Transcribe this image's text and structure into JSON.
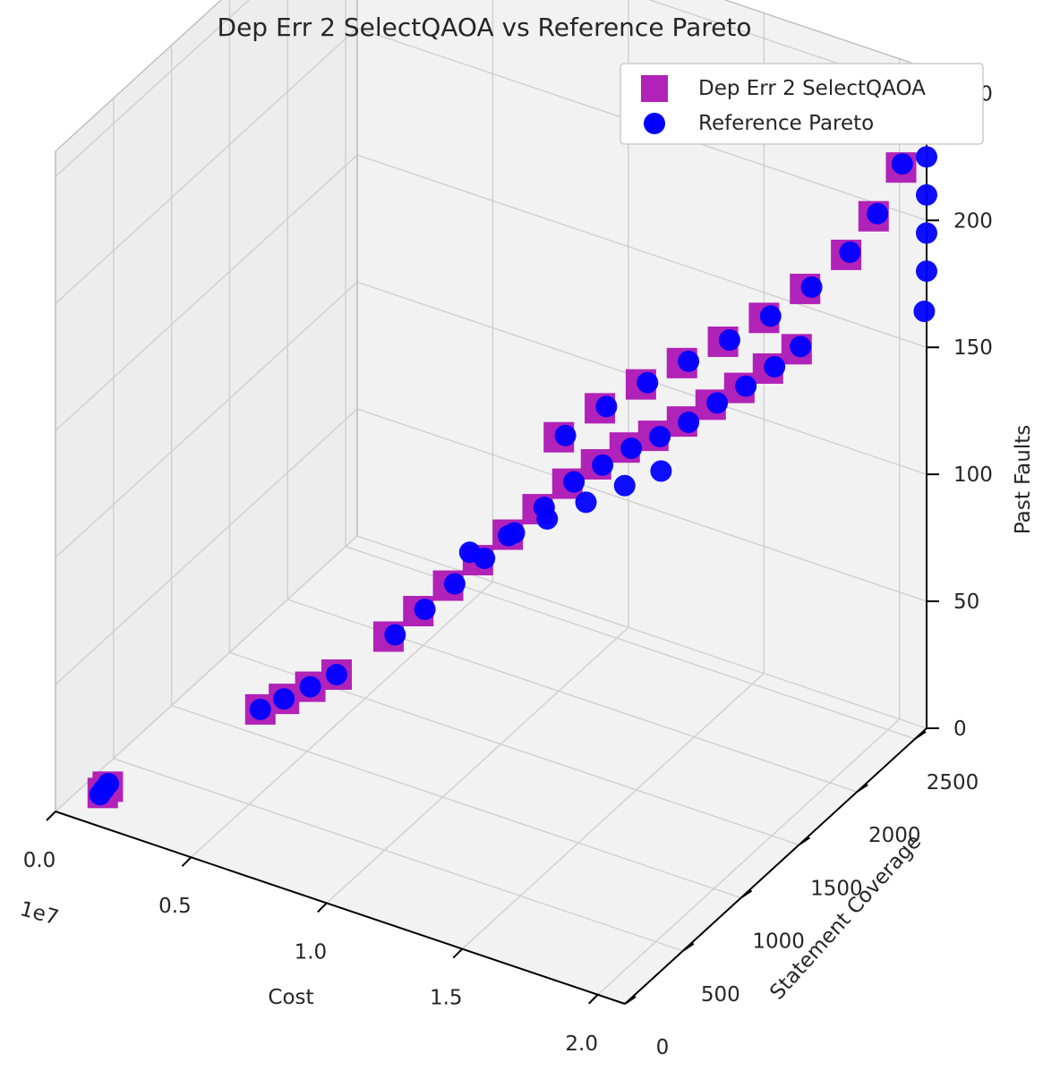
{
  "chart_data": {
    "type": "scatter",
    "title": "Dep Err 2 SelectQAOA vs Reference Pareto",
    "xlabel": "Cost",
    "ylabel": "Statement Coverage",
    "zlabel": "Past Faults",
    "x_offset_label": "1e7",
    "xlim": [
      0,
      2.1
    ],
    "ylim": [
      0,
      2600
    ],
    "zlim": [
      0,
      260
    ],
    "x_ticks": [
      "0.0",
      "0.5",
      "1.0",
      "1.5",
      "2.0"
    ],
    "y_ticks": [
      "0",
      "500",
      "1000",
      "1500",
      "2000",
      "2500"
    ],
    "z_ticks": [
      "0",
      "50",
      "100",
      "150",
      "200",
      "250"
    ],
    "grid": true,
    "legend_position": "top-right",
    "colors": {
      "selectqaoa": "#b122b8",
      "reference": "#0000ff"
    },
    "series": [
      {
        "name": "Dep Err 2 SelectQAOA",
        "marker": "square",
        "points": [
          [
            0.11,
            150,
            5
          ],
          [
            0.12,
            170,
            7
          ],
          [
            0.55,
            480,
            40
          ],
          [
            0.62,
            520,
            45
          ],
          [
            0.7,
            560,
            51
          ],
          [
            0.78,
            600,
            57
          ],
          [
            0.92,
            720,
            72
          ],
          [
            1.0,
            790,
            82
          ],
          [
            1.08,
            860,
            92
          ],
          [
            1.16,
            930,
            102
          ],
          [
            1.24,
            1000,
            112
          ],
          [
            1.32,
            1070,
            122
          ],
          [
            1.4,
            1140,
            132
          ],
          [
            1.48,
            1200,
            140
          ],
          [
            1.56,
            1260,
            147
          ],
          [
            1.64,
            1320,
            152
          ],
          [
            1.72,
            1380,
            158
          ],
          [
            1.8,
            1440,
            165
          ],
          [
            1.88,
            1500,
            172
          ],
          [
            1.96,
            1560,
            180
          ],
          [
            2.04,
            1620,
            188
          ],
          [
            1.3,
            1300,
            140
          ],
          [
            1.4,
            1420,
            150
          ],
          [
            1.5,
            1540,
            158
          ],
          [
            1.6,
            1660,
            165
          ],
          [
            1.7,
            1780,
            172
          ],
          [
            1.8,
            1900,
            180
          ],
          [
            1.9,
            2020,
            190
          ],
          [
            2.0,
            2140,
            202
          ],
          [
            2.05,
            2260,
            214
          ],
          [
            2.1,
            2380,
            230
          ],
          [
            2.1,
            2470,
            242
          ]
        ]
      },
      {
        "name": "Reference Pareto",
        "marker": "circle",
        "points": [
          [
            0.1,
            150,
            4
          ],
          [
            0.11,
            160,
            6
          ],
          [
            0.12,
            175,
            8
          ],
          [
            0.55,
            480,
            40
          ],
          [
            0.62,
            520,
            45
          ],
          [
            0.7,
            560,
            51
          ],
          [
            0.78,
            600,
            57
          ],
          [
            0.94,
            730,
            73
          ],
          [
            1.02,
            800,
            83
          ],
          [
            1.1,
            870,
            93
          ],
          [
            1.18,
            940,
            103
          ],
          [
            1.26,
            1010,
            113
          ],
          [
            1.34,
            1080,
            123
          ],
          [
            1.42,
            1150,
            133
          ],
          [
            1.5,
            1210,
            140
          ],
          [
            1.58,
            1270,
            147
          ],
          [
            1.66,
            1330,
            152
          ],
          [
            1.74,
            1390,
            158
          ],
          [
            1.82,
            1450,
            166
          ],
          [
            1.9,
            1510,
            173
          ],
          [
            1.98,
            1570,
            181
          ],
          [
            2.05,
            1630,
            189
          ],
          [
            1.1,
            1000,
            100
          ],
          [
            1.2,
            1100,
            106
          ],
          [
            1.3,
            1200,
            112
          ],
          [
            1.4,
            1300,
            118
          ],
          [
            1.5,
            1400,
            124
          ],
          [
            1.6,
            1480,
            130
          ],
          [
            1.32,
            1310,
            141
          ],
          [
            1.42,
            1430,
            151
          ],
          [
            1.52,
            1550,
            159
          ],
          [
            1.62,
            1670,
            166
          ],
          [
            1.72,
            1790,
            173
          ],
          [
            1.82,
            1910,
            181
          ],
          [
            1.92,
            2030,
            191
          ],
          [
            2.01,
            2150,
            203
          ],
          [
            2.06,
            2270,
            215
          ],
          [
            2.1,
            2390,
            231
          ],
          [
            2.1,
            2470,
            242
          ],
          [
            2.1,
            2580,
            165
          ],
          [
            2.1,
            2600,
            180
          ],
          [
            2.1,
            2600,
            195
          ],
          [
            2.1,
            2600,
            210
          ],
          [
            2.1,
            2600,
            225
          ],
          [
            2.1,
            2600,
            240
          ]
        ]
      }
    ]
  }
}
